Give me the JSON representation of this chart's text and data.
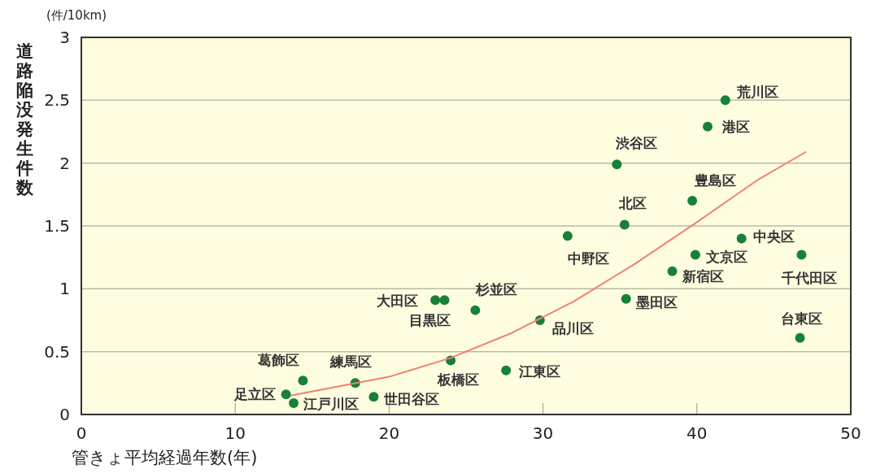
{
  "chart_data": {
    "type": "scatter",
    "xlabel": "管きょ平均経過年数(年)",
    "ylabel": "道路陥没発生件数",
    "xlim": [
      0,
      50
    ],
    "ylim": [
      0,
      3
    ],
    "xticks": [
      0,
      10,
      20,
      30,
      40,
      50
    ],
    "yticks": [
      0,
      0.5,
      1,
      1.5,
      2,
      2.5,
      3
    ],
    "grid": "y",
    "marker": "circle",
    "series": [
      {
        "type": "scatter",
        "color": "#17803a",
        "x": [
          41.85,
          40.7,
          34.8,
          39.7,
          35.3,
          31.6,
          42.9,
          39.9,
          46.8,
          38.4,
          23.0,
          23.6,
          25.6,
          35.4,
          29.8,
          46.7,
          24.0,
          27.6,
          14.4,
          17.8,
          19.0,
          13.3,
          13.8
        ],
        "values": [
          2.5,
          2.29,
          1.99,
          1.7,
          1.51,
          1.42,
          1.4,
          1.27,
          1.27,
          1.14,
          0.91,
          0.91,
          0.83,
          0.92,
          0.75,
          0.61,
          0.43,
          0.35,
          0.27,
          0.25,
          0.14,
          0.16,
          0.09
        ]
      },
      {
        "type": "line",
        "color": "#f08070",
        "marker": "none",
        "x": [
          13.6,
          20,
          24,
          28,
          32,
          36,
          40,
          44,
          47.1
        ],
        "values": [
          0.15,
          0.3,
          0.45,
          0.65,
          0.9,
          1.2,
          1.53,
          1.87,
          2.09
        ]
      }
    ],
    "annotations": [
      "(件/10km)",
      {
        "text": "荒川区",
        "x": 41.85,
        "y": 2.5
      },
      {
        "text": "港区",
        "x": 40.7,
        "y": 2.29
      },
      {
        "text": "渋谷区",
        "x": 34.8,
        "y": 1.99
      },
      {
        "text": "豊島区",
        "x": 39.7,
        "y": 1.7
      },
      {
        "text": "北区",
        "x": 35.3,
        "y": 1.51
      },
      {
        "text": "中野区",
        "x": 31.6,
        "y": 1.42
      },
      {
        "text": "中央区",
        "x": 42.9,
        "y": 1.4
      },
      {
        "text": "文京区",
        "x": 39.9,
        "y": 1.27
      },
      {
        "text": "千代田区",
        "x": 46.8,
        "y": 1.27
      },
      {
        "text": "新宿区",
        "x": 38.4,
        "y": 1.14
      },
      {
        "text": "大田区",
        "x": 23.0,
        "y": 0.91
      },
      {
        "text": "目黒区",
        "x": 23.6,
        "y": 0.91
      },
      {
        "text": "杉並区",
        "x": 25.6,
        "y": 0.83
      },
      {
        "text": "墨田区",
        "x": 35.4,
        "y": 0.92
      },
      {
        "text": "品川区",
        "x": 29.8,
        "y": 0.75
      },
      {
        "text": "台東区",
        "x": 46.7,
        "y": 0.61
      },
      {
        "text": "板橋区",
        "x": 24.0,
        "y": 0.43
      },
      {
        "text": "江東区",
        "x": 27.6,
        "y": 0.35
      },
      {
        "text": "葛飾区",
        "x": 14.4,
        "y": 0.27
      },
      {
        "text": "練馬区",
        "x": 17.8,
        "y": 0.25
      },
      {
        "text": "世田谷区",
        "x": 19.0,
        "y": 0.14
      },
      {
        "text": "足立区",
        "x": 13.3,
        "y": 0.16
      },
      {
        "text": "江戸川区",
        "x": 13.8,
        "y": 0.09
      }
    ]
  }
}
